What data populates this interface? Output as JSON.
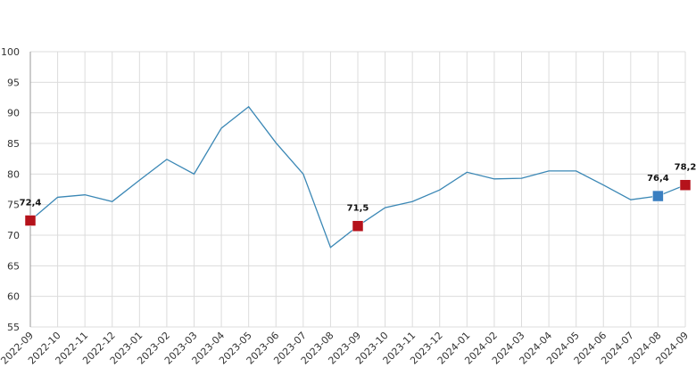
{
  "chart_data": {
    "type": "line",
    "categories": [
      "2022-09",
      "2022-10",
      "2022-11",
      "2022-12",
      "2023-01",
      "2023-02",
      "2023-03",
      "2023-04",
      "2023-05",
      "2023-06",
      "2023-07",
      "2023-08",
      "2023-09",
      "2023-10",
      "2023-11",
      "2023-12",
      "2024-01",
      "2024-02",
      "2024-03",
      "2024-04",
      "2024-05",
      "2024-06",
      "2024-07",
      "2024-08",
      "2024-09"
    ],
    "values": [
      72.4,
      76.2,
      76.6,
      75.5,
      79.0,
      82.4,
      80.0,
      87.5,
      91.0,
      85.1,
      80.0,
      68.0,
      71.5,
      74.5,
      75.5,
      77.4,
      80.3,
      79.2,
      79.3,
      80.5,
      80.5,
      78.2,
      75.8,
      76.4,
      78.2
    ],
    "value_labels": [
      "72,4",
      null,
      null,
      null,
      null,
      null,
      null,
      null,
      null,
      null,
      null,
      null,
      "71,5",
      null,
      null,
      null,
      null,
      null,
      null,
      null,
      null,
      null,
      null,
      "76,4",
      "78,2"
    ],
    "point_colors": [
      "#b5121b",
      null,
      null,
      null,
      null,
      null,
      null,
      null,
      null,
      null,
      null,
      null,
      "#b5121b",
      null,
      null,
      null,
      null,
      null,
      null,
      null,
      null,
      null,
      null,
      "#3a7fc1",
      "#b5121b"
    ],
    "color": "#3a87b5",
    "ylim": [
      55,
      100
    ],
    "yticks": [
      55,
      60,
      65,
      70,
      75,
      80,
      85,
      90,
      95,
      100
    ],
    "grid": true
  }
}
